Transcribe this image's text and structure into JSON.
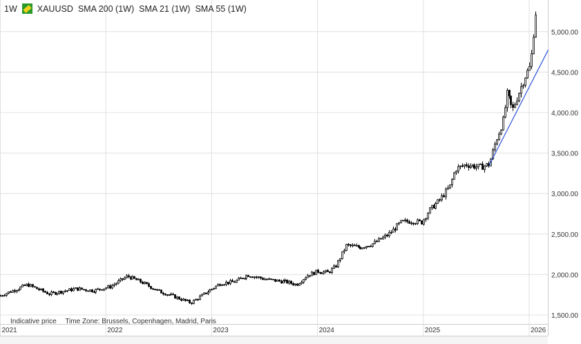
{
  "header": {
    "interval": "1W",
    "symbol": "XAUUSD",
    "indicators": [
      "SMA 200 (1W)",
      "SMA 21 (1W)",
      "SMA 55 (1W)"
    ]
  },
  "footer": {
    "note": "Indicative price",
    "timezone": "Time Zone: Brussels, Copenhagen, Madrid, Paris"
  },
  "colors": {
    "candle": "#000000",
    "trendline": "#2b4fd6",
    "grid": "#e0e0e0",
    "symbol_icon": "#2a9a2a"
  },
  "chart_data": {
    "type": "candlestick",
    "title": "XAUUSD 1W",
    "x_ticks": [
      "2021",
      "2022",
      "2023",
      "2024",
      "2025",
      "2026"
    ],
    "y_ticks": [
      "1,500.00",
      "2,000.00",
      "2,500.00",
      "3,000.00",
      "3,500.00",
      "4,000.00",
      "4,500.00",
      "5,000.00"
    ],
    "ylim": [
      1400,
      5400
    ],
    "xlim": [
      2021.0,
      2026.18
    ],
    "grid": true,
    "close_keypoints": [
      [
        2021.0,
        1740
      ],
      [
        2021.26,
        1875
      ],
      [
        2021.46,
        1760
      ],
      [
        2021.72,
        1825
      ],
      [
        2021.88,
        1800
      ],
      [
        2022.04,
        1850
      ],
      [
        2022.2,
        1980
      ],
      [
        2022.33,
        1910
      ],
      [
        2022.5,
        1790
      ],
      [
        2022.62,
        1740
      ],
      [
        2022.8,
        1650
      ],
      [
        2022.95,
        1780
      ],
      [
        2023.08,
        1890
      ],
      [
        2023.21,
        1910
      ],
      [
        2023.34,
        1995
      ],
      [
        2023.53,
        1935
      ],
      [
        2023.7,
        1910
      ],
      [
        2023.8,
        1875
      ],
      [
        2023.9,
        1990
      ],
      [
        2024.0,
        2040
      ],
      [
        2024.1,
        2025
      ],
      [
        2024.17,
        2100
      ],
      [
        2024.27,
        2360
      ],
      [
        2024.4,
        2335
      ],
      [
        2024.53,
        2385
      ],
      [
        2024.66,
        2490
      ],
      [
        2024.79,
        2645
      ],
      [
        2024.88,
        2660
      ],
      [
        2024.98,
        2645
      ],
      [
        2025.05,
        2790
      ],
      [
        2025.15,
        2915
      ],
      [
        2025.25,
        3090
      ],
      [
        2025.3,
        3300
      ],
      [
        2025.4,
        3360
      ],
      [
        2025.53,
        3325
      ],
      [
        2025.62,
        3360
      ],
      [
        2025.68,
        3640
      ],
      [
        2025.75,
        3900
      ],
      [
        2025.79,
        4240
      ],
      [
        2025.84,
        4025
      ],
      [
        2025.9,
        4240
      ],
      [
        2025.96,
        4450
      ],
      [
        2026.01,
        4580
      ],
      [
        2026.04,
        5010
      ],
      [
        2026.06,
        5265
      ]
    ],
    "trendline": [
      [
        2025.62,
        3345
      ],
      [
        2026.18,
        4775
      ]
    ]
  }
}
